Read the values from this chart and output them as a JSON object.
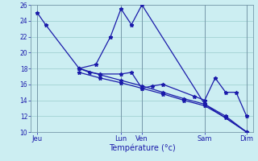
{
  "xlabel": "Température (°c)",
  "bg_color": "#cceef2",
  "line_color": "#1a1aaa",
  "grid_color": "#99cccc",
  "ylim": [
    10,
    26
  ],
  "yticks": [
    10,
    12,
    14,
    16,
    18,
    20,
    22,
    24,
    26
  ],
  "x_tick_labels": [
    "Jeu",
    "Lun",
    "Ven",
    "Sam",
    "Dim"
  ],
  "x_tick_pos": [
    0,
    4,
    5,
    8,
    10
  ],
  "x_max": 10,
  "line1_x": [
    0,
    0.4,
    2.0,
    2.8,
    3.5,
    4.0,
    4.5,
    5.0,
    8.0,
    10.0
  ],
  "line1_y": [
    25.0,
    23.5,
    18.0,
    18.5,
    22.0,
    25.5,
    23.5,
    26.0,
    13.5,
    10.0
  ],
  "line2_x": [
    2.0,
    2.5,
    3.0,
    4.0,
    4.5,
    5.0,
    5.5,
    6.0,
    7.5,
    8.0,
    8.5,
    9.0,
    9.5,
    10.0
  ],
  "line2_y": [
    18.0,
    17.5,
    17.3,
    17.3,
    17.5,
    15.5,
    15.8,
    16.0,
    14.5,
    14.0,
    16.8,
    15.0,
    15.0,
    12.0
  ],
  "line3_x": [
    2.0,
    3.0,
    4.0,
    5.0,
    6.0,
    7.0,
    8.0,
    9.0,
    10.0
  ],
  "line3_y": [
    18.0,
    17.2,
    16.5,
    15.8,
    15.0,
    14.2,
    13.5,
    12.0,
    10.0
  ],
  "line4_x": [
    2.0,
    3.0,
    4.0,
    5.0,
    6.0,
    7.0,
    8.0,
    9.0,
    10.0
  ],
  "line4_y": [
    17.5,
    16.8,
    16.2,
    15.5,
    14.8,
    14.0,
    13.3,
    11.8,
    10.0
  ]
}
